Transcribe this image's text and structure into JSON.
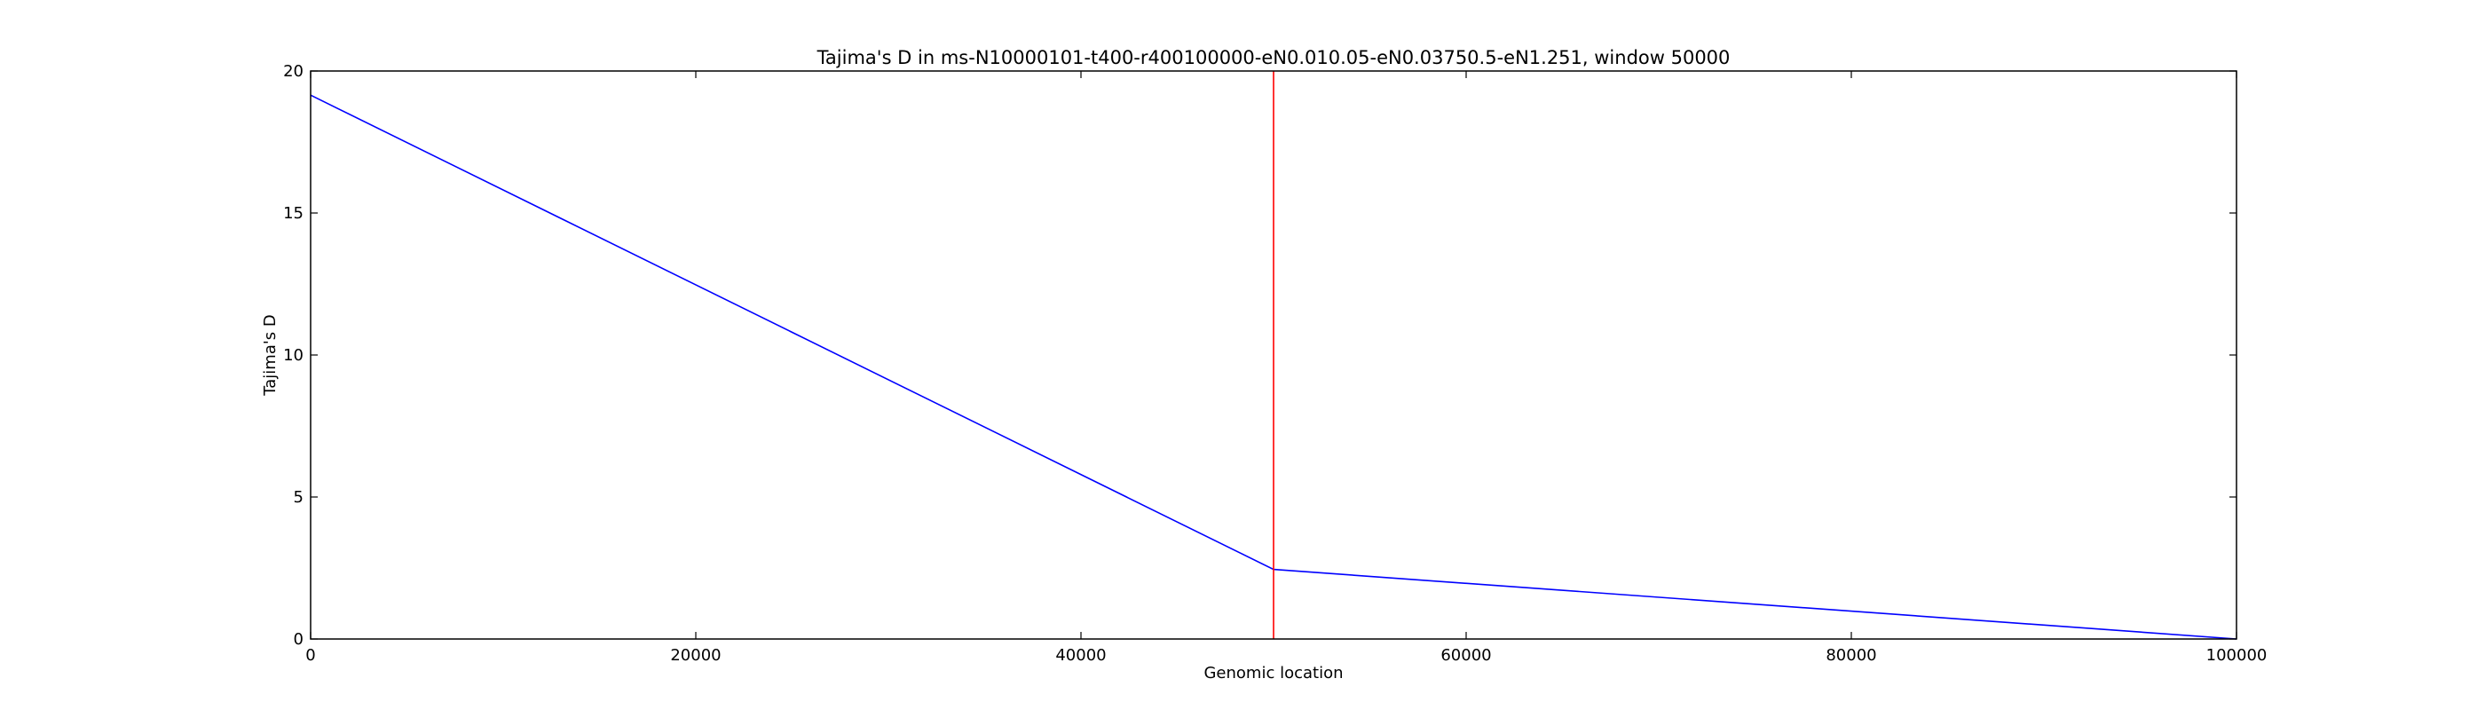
{
  "chart_data": {
    "type": "line",
    "title": "Tajima's D in ms-N10000101-t400-r400100000-eN0.010.05-eN0.03750.5-eN1.251, window 50000",
    "xlabel": "Genomic location",
    "ylabel": "Tajima's D",
    "xlim": [
      0,
      100000
    ],
    "ylim": [
      0,
      20
    ],
    "xticks": [
      0,
      20000,
      40000,
      60000,
      80000,
      100000
    ],
    "xtick_labels": [
      "0",
      "20000",
      "40000",
      "60000",
      "80000",
      "100000"
    ],
    "yticks": [
      0,
      5,
      10,
      15,
      20
    ],
    "ytick_labels": [
      "0",
      "5",
      "10",
      "15",
      "20"
    ],
    "grid": false,
    "series": [
      {
        "x": [
          0,
          50000,
          100000
        ],
        "y": [
          19.15,
          2.45,
          0.0
        ],
        "color": "#0000ff"
      }
    ],
    "vlines": [
      {
        "x": 50000,
        "color": "#ff0000"
      }
    ]
  }
}
